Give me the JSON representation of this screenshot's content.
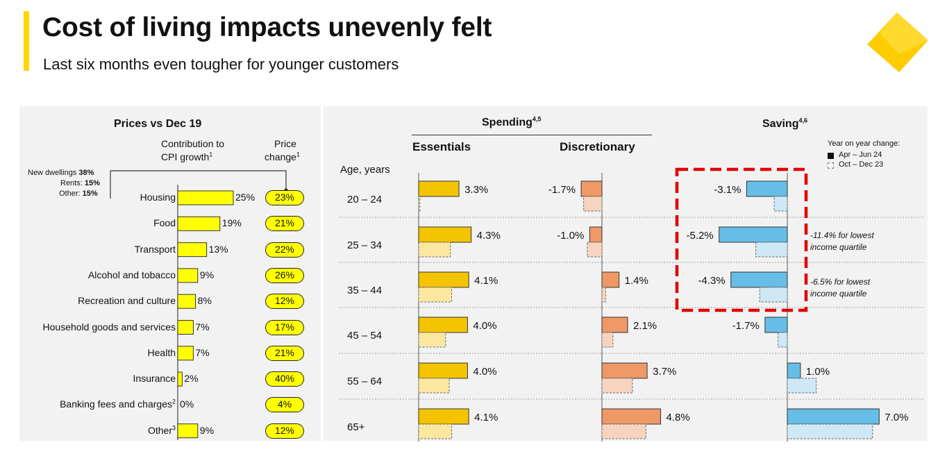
{
  "header": {
    "title": "Cost of living impacts unevenly felt",
    "subtitle": "Last six months even tougher for younger customers"
  },
  "colors": {
    "accent": "#ffd700",
    "prices_bar": "#ffff00",
    "essentials": "#f5c400",
    "essentials_prev": "#fbe8a0",
    "discretionary": "#ee9966",
    "discretionary_prev": "#f8d4c0",
    "saving": "#66bde6",
    "saving_prev": "#cfe8f6",
    "highlight_box": "#e00000"
  },
  "prices_panel": {
    "title": "Prices vs Dec 19",
    "contrib_header_line1": "Contribution to",
    "contrib_header_line2": "CPI growth",
    "contrib_header_sup": "1",
    "price_header_line1": "Price",
    "price_header_line2": "change",
    "price_header_sup": "1",
    "housing_breakdown": [
      {
        "label": "New dwellings",
        "value": "38%"
      },
      {
        "label": "Rents:",
        "value": "15%"
      },
      {
        "label": "Other:",
        "value": "15%"
      }
    ]
  },
  "spending_panel": {
    "title": "Spending",
    "title_sup": "4,5",
    "essentials_label": "Essentials",
    "discretionary_label": "Discretionary",
    "age_axis_label": "Age, years"
  },
  "saving_panel": {
    "title": "Saving",
    "title_sup": "4,6",
    "legend_title": "Year on year change:",
    "legend_current": "Apr – Jun 24",
    "legend_prev": "Oct – Dec 23",
    "note1_line1": "-11.4% for lowest",
    "note1_line2": "income quartile",
    "note2_line1": "-6.5% for lowest",
    "note2_line2": "income quartile"
  },
  "chart_data": [
    {
      "type": "bar",
      "title": "Prices vs Dec 19",
      "categories": [
        "Housing",
        "Food",
        "Transport",
        "Alcohol and tobacco",
        "Recreation and culture",
        "Household goods and services",
        "Health",
        "Insurance",
        "Banking fees and charges",
        "Other"
      ],
      "category_sups": [
        "",
        "",
        "",
        "",
        "",
        "",
        "",
        "",
        "2",
        "3"
      ],
      "series": [
        {
          "name": "Contribution to CPI growth",
          "values": [
            25,
            19,
            13,
            9,
            8,
            7,
            7,
            2,
            0,
            9
          ],
          "labels": [
            "25%",
            "19%",
            "13%",
            "9%",
            "8%",
            "7%",
            "7%",
            "2%",
            "0%",
            "9%"
          ]
        },
        {
          "name": "Price change",
          "values": [
            23,
            21,
            22,
            26,
            12,
            17,
            21,
            40,
            4,
            12
          ],
          "labels": [
            "23%",
            "21%",
            "22%",
            "26%",
            "12%",
            "17%",
            "21%",
            "40%",
            "4%",
            "12%"
          ]
        }
      ]
    },
    {
      "type": "bar",
      "title": "Spending",
      "categories": [
        "20 – 24",
        "25 – 34",
        "35 – 44",
        "45 – 54",
        "55 – 64",
        "65+"
      ],
      "series": [
        {
          "name": "Essentials Apr – Jun 24",
          "values": [
            3.3,
            4.3,
            4.1,
            4.0,
            4.0,
            4.1
          ],
          "labels": [
            "3.3%",
            "4.3%",
            "4.1%",
            "4.0%",
            "4.0%",
            "4.1%"
          ]
        },
        {
          "name": "Essentials Oct – Dec 23",
          "values": [
            0.1,
            2.6,
            2.7,
            2.2,
            2.5,
            2.7
          ]
        },
        {
          "name": "Discretionary Apr – Jun 24",
          "values": [
            -1.7,
            -1.0,
            1.4,
            2.1,
            3.7,
            4.8
          ],
          "labels": [
            "-1.7%",
            "-1.0%",
            "1.4%",
            "2.1%",
            "3.7%",
            "4.8%"
          ]
        },
        {
          "name": "Discretionary Oct – Dec 23",
          "values": [
            -1.5,
            -1.2,
            0.3,
            0.9,
            2.5,
            3.6
          ]
        }
      ]
    },
    {
      "type": "bar",
      "title": "Saving",
      "categories": [
        "20 – 24",
        "25 – 34",
        "35 – 44",
        "45 – 54",
        "55 – 64",
        "65+"
      ],
      "series": [
        {
          "name": "Apr – Jun 24",
          "values": [
            -3.1,
            -5.2,
            -4.3,
            -1.7,
            1.0,
            7.0
          ],
          "labels": [
            "-3.1%",
            "-5.2%",
            "-4.3%",
            "-1.7%",
            "1.0%",
            "7.0%"
          ]
        },
        {
          "name": "Oct – Dec 23",
          "values": [
            -1.0,
            -2.4,
            -2.1,
            -0.7,
            2.2,
            6.5
          ]
        }
      ]
    }
  ]
}
